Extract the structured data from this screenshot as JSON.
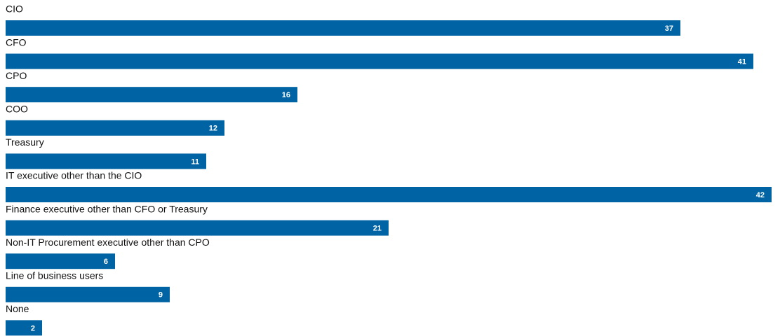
{
  "chart_data": {
    "type": "bar",
    "color": "#0063a3",
    "categories": [
      "CIO",
      "CFO",
      "CPO",
      "COO",
      "Treasury",
      "IT executive other than the CIO",
      "Finance executive other than CFO or Treasury",
      "Non-IT Procurement executive other than CPO",
      "Line of business users",
      "None"
    ],
    "values": [
      37,
      41,
      16,
      12,
      11,
      42,
      21,
      6,
      9,
      2
    ]
  }
}
